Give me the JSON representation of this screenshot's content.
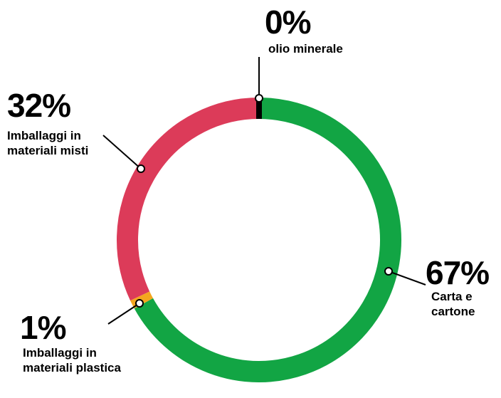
{
  "chart_data": {
    "type": "donut",
    "categories": [
      "Carta e cartone",
      "Imballaggi in materiali plastica",
      "Imballaggi in materiali misti",
      "olio minerale"
    ],
    "values": [
      67,
      1,
      32,
      0
    ],
    "value_labels": [
      "67%",
      "1%",
      "32%",
      "0%"
    ],
    "colors": [
      "#12a544",
      "#f3a61f",
      "#dc3b59",
      "#000000"
    ]
  }
}
